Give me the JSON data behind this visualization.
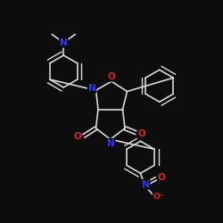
{
  "bg_color": "#0d0d0d",
  "bond_color": "#d8d8d8",
  "bond_width": 1.2,
  "atom_colors": {
    "N": "#3333ff",
    "O": "#dd2222",
    "default": "#d8d8d8"
  },
  "fs": 7.5,
  "fs_small": 6.5
}
